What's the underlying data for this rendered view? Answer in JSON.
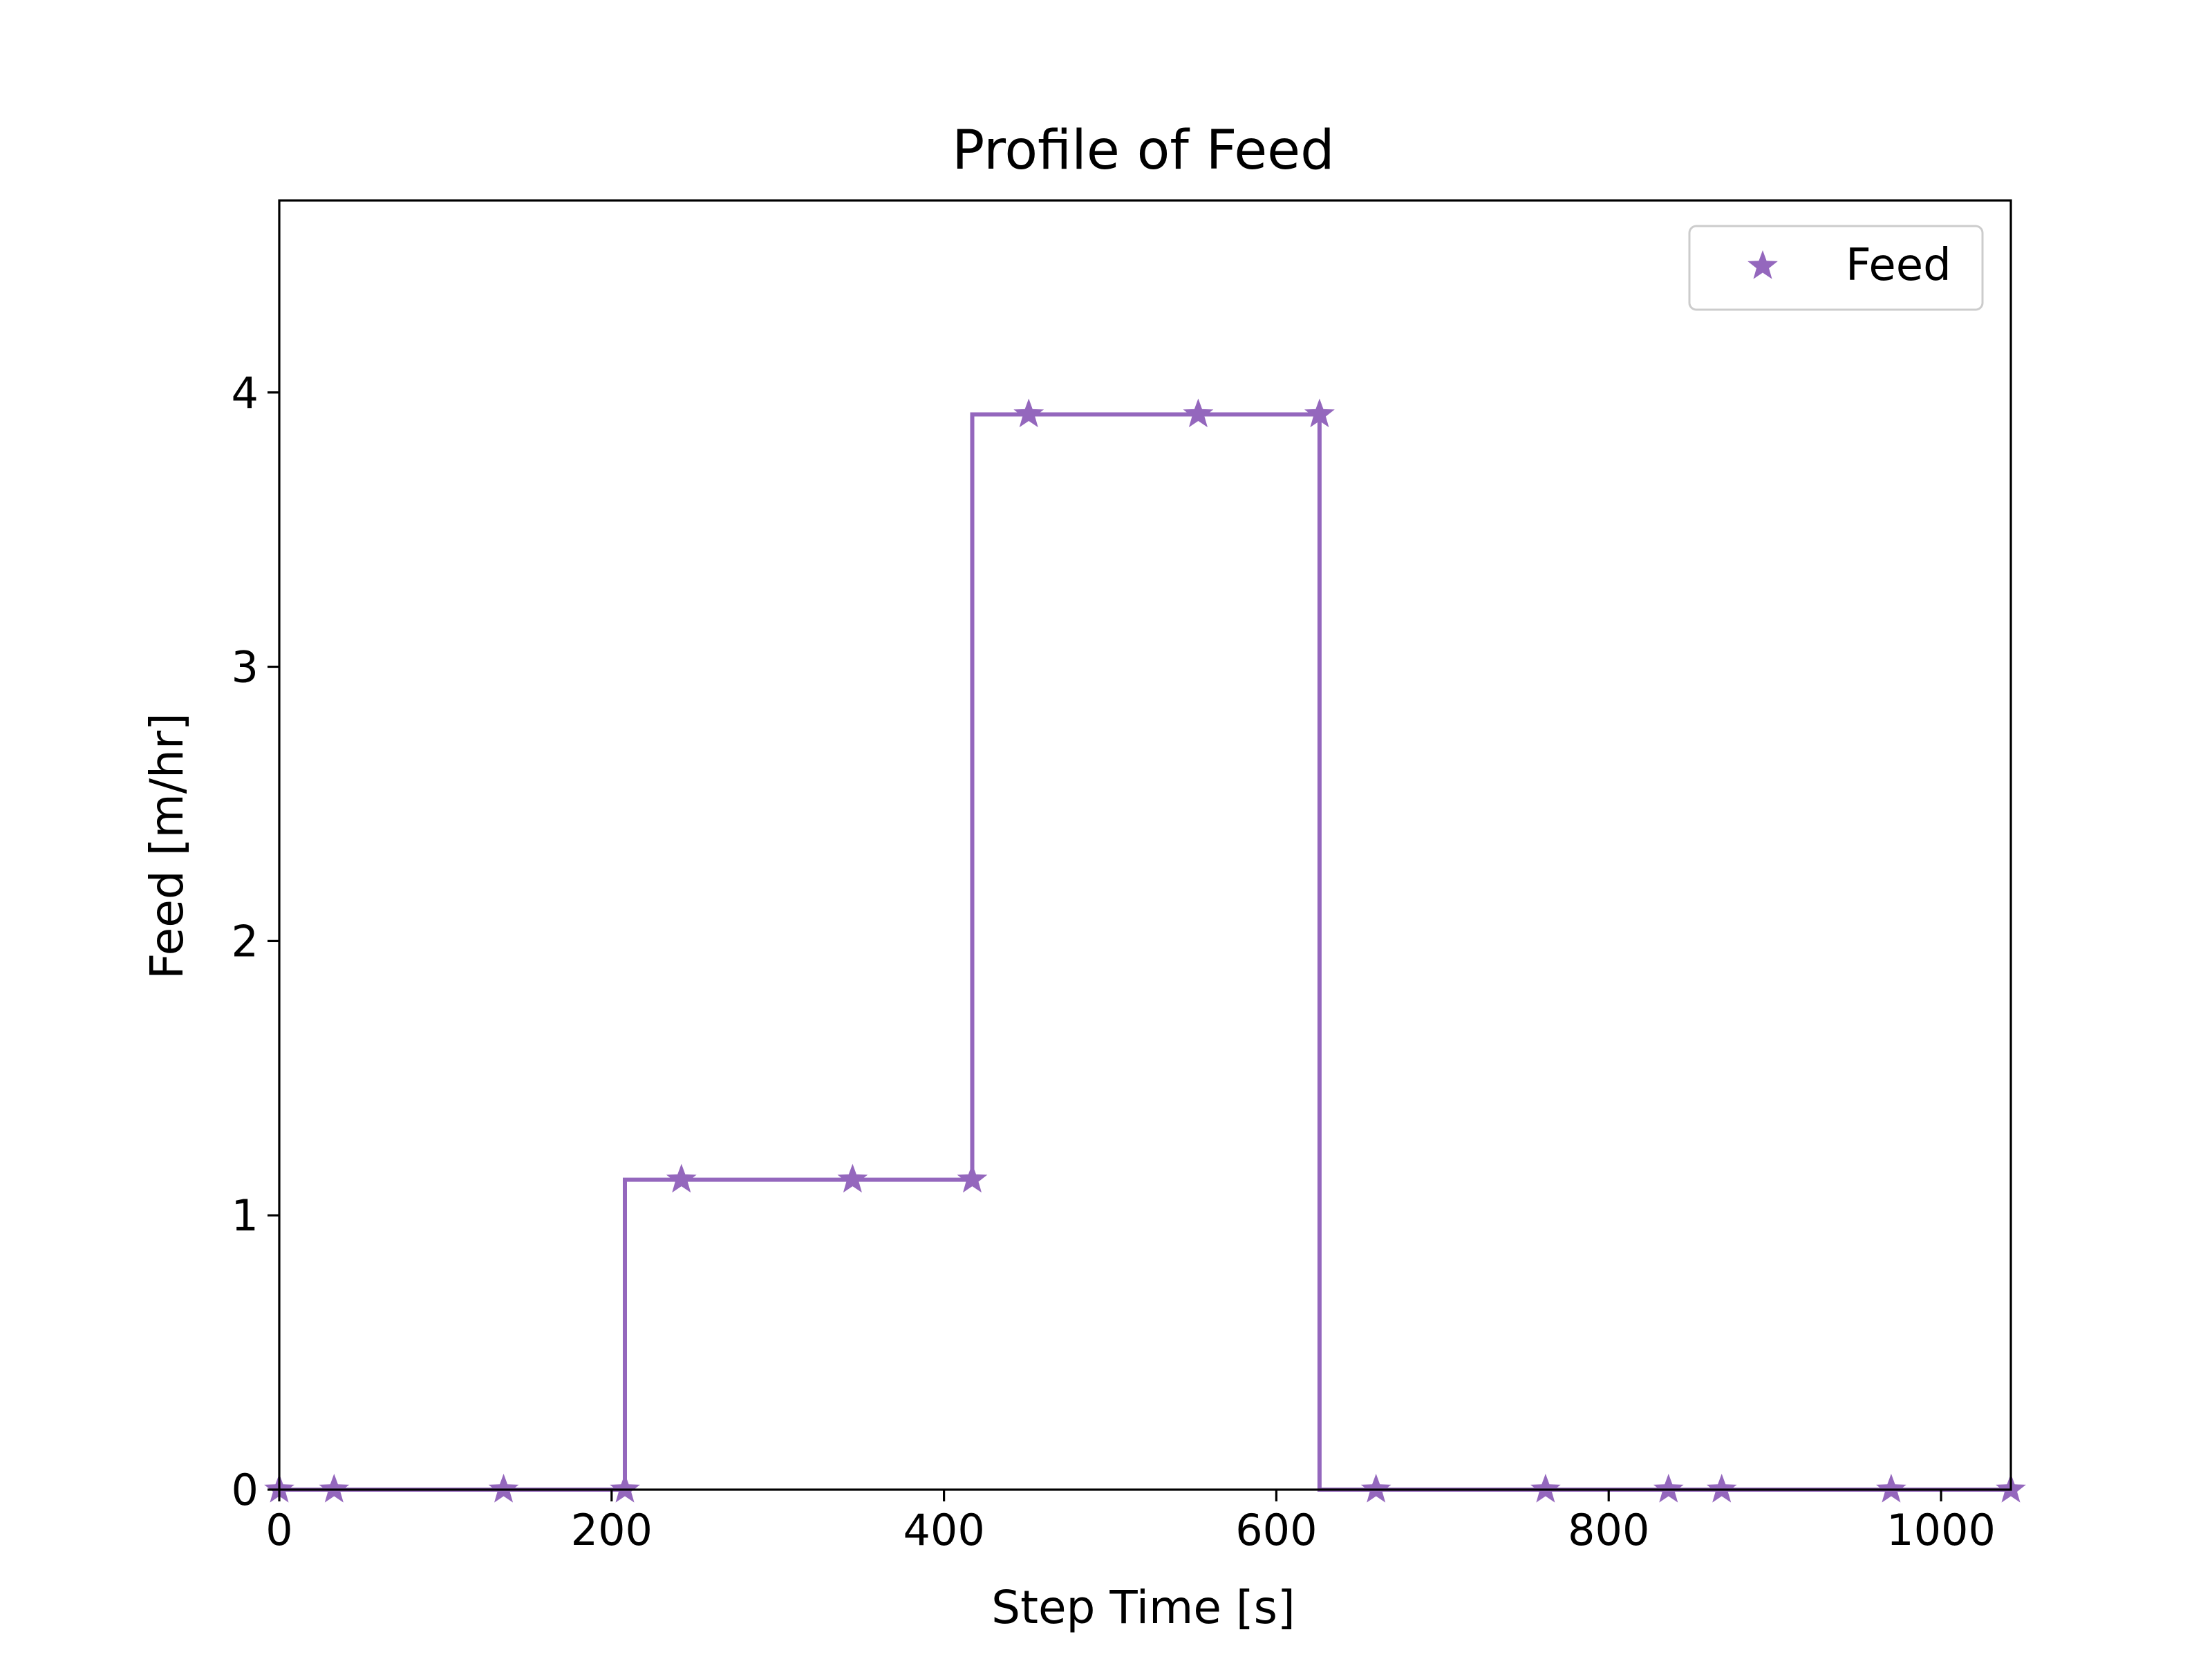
{
  "chart_data": {
    "type": "line",
    "title": "Profile of Feed",
    "xlabel": "Step Time [s]",
    "ylabel": "Feed [m/hr]",
    "xlim": [
      0,
      1042
    ],
    "ylim": [
      0,
      4.7
    ],
    "xticks": [
      0,
      200,
      400,
      600,
      800,
      1000
    ],
    "yticks": [
      0,
      1,
      2,
      3,
      4
    ],
    "xtick_labels": [
      "0",
      "200",
      "400",
      "600",
      "800",
      "1000"
    ],
    "ytick_labels": [
      "0",
      "1",
      "2",
      "3",
      "4"
    ],
    "grid": false,
    "legend_position": "top-right",
    "series": [
      {
        "name": "Feed",
        "color": "#9467bd",
        "marker": "star",
        "step_line": [
          [
            0,
            0
          ],
          [
            208,
            0
          ],
          [
            208,
            1.13
          ],
          [
            417,
            1.13
          ],
          [
            417,
            3.92
          ],
          [
            626,
            3.92
          ],
          [
            626,
            0
          ],
          [
            1042,
            0
          ]
        ],
        "markers": [
          [
            0,
            0
          ],
          [
            33,
            0
          ],
          [
            135,
            0
          ],
          [
            208,
            0
          ],
          [
            242,
            1.13
          ],
          [
            345,
            1.13
          ],
          [
            417,
            1.13
          ],
          [
            451,
            3.92
          ],
          [
            553,
            3.92
          ],
          [
            626,
            3.92
          ],
          [
            660,
            0
          ],
          [
            762,
            0
          ],
          [
            836,
            0
          ],
          [
            868,
            0
          ],
          [
            970,
            0
          ],
          [
            1042,
            0
          ]
        ]
      }
    ]
  }
}
